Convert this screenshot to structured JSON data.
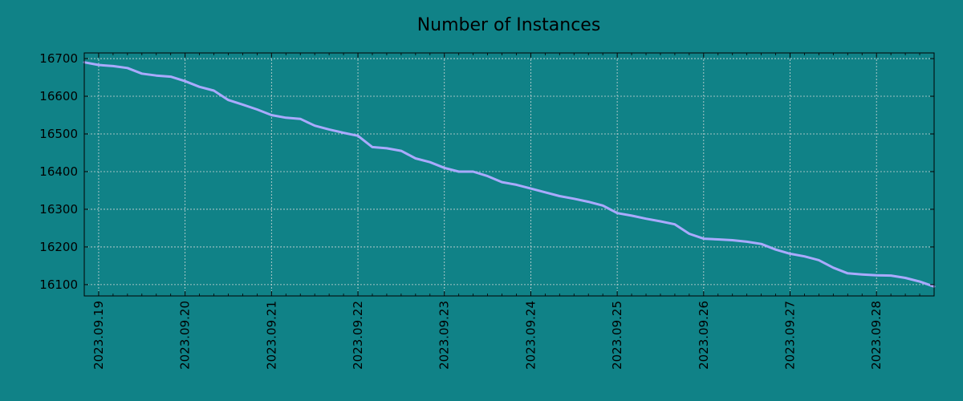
{
  "chart_data": {
    "type": "line",
    "title": "Number of Instances",
    "xlabel": "",
    "ylabel": "",
    "grid": true,
    "x_ticks": [
      "2023.09.19",
      "2023.09.20",
      "2023.09.21",
      "2023.09.22",
      "2023.09.23",
      "2023.09.24",
      "2023.09.25",
      "2023.09.26",
      "2023.09.27",
      "2023.09.28"
    ],
    "y_ticks": [
      16100,
      16200,
      16300,
      16400,
      16500,
      16600,
      16700
    ],
    "xlim": [
      "2023-09-18 20:00",
      "2023-09-28 16:00"
    ],
    "ylim": [
      16070,
      16715
    ],
    "series": [
      {
        "color": "#aaaaff",
        "x": [
          "2023-09-18 20:00",
          "2023-09-19 00:00",
          "2023-09-19 04:00",
          "2023-09-19 08:00",
          "2023-09-19 12:00",
          "2023-09-19 16:00",
          "2023-09-19 20:00",
          "2023-09-20 00:00",
          "2023-09-20 04:00",
          "2023-09-20 08:00",
          "2023-09-20 12:00",
          "2023-09-20 16:00",
          "2023-09-20 20:00",
          "2023-09-21 00:00",
          "2023-09-21 04:00",
          "2023-09-21 08:00",
          "2023-09-21 12:00",
          "2023-09-21 16:00",
          "2023-09-21 20:00",
          "2023-09-22 00:00",
          "2023-09-22 04:00",
          "2023-09-22 08:00",
          "2023-09-22 12:00",
          "2023-09-22 16:00",
          "2023-09-22 20:00",
          "2023-09-23 00:00",
          "2023-09-23 04:00",
          "2023-09-23 08:00",
          "2023-09-23 12:00",
          "2023-09-23 16:00",
          "2023-09-23 20:00",
          "2023-09-24 00:00",
          "2023-09-24 04:00",
          "2023-09-24 08:00",
          "2023-09-24 12:00",
          "2023-09-24 16:00",
          "2023-09-24 20:00",
          "2023-09-25 00:00",
          "2023-09-25 04:00",
          "2023-09-25 08:00",
          "2023-09-25 12:00",
          "2023-09-25 16:00",
          "2023-09-25 20:00",
          "2023-09-26 00:00",
          "2023-09-26 04:00",
          "2023-09-26 08:00",
          "2023-09-26 12:00",
          "2023-09-26 16:00",
          "2023-09-26 20:00",
          "2023-09-27 00:00",
          "2023-09-27 04:00",
          "2023-09-27 08:00",
          "2023-09-27 12:00",
          "2023-09-27 16:00",
          "2023-09-27 20:00",
          "2023-09-28 00:00",
          "2023-09-28 04:00",
          "2023-09-28 08:00",
          "2023-09-28 12:00",
          "2023-09-28 16:00"
        ],
        "values": [
          16690,
          16683,
          16680,
          16675,
          16660,
          16655,
          16652,
          16640,
          16625,
          16615,
          16590,
          16578,
          16565,
          16550,
          16543,
          16540,
          16522,
          16512,
          16503,
          16495,
          16465,
          16462,
          16455,
          16435,
          16425,
          16410,
          16400,
          16400,
          16388,
          16372,
          16365,
          16355,
          16345,
          16335,
          16328,
          16320,
          16310,
          16290,
          16283,
          16275,
          16268,
          16260,
          16235,
          16222,
          16220,
          16218,
          16214,
          16208,
          16193,
          16182,
          16175,
          16165,
          16145,
          16130,
          16127,
          16125,
          16124,
          16118,
          16108,
          16095
        ]
      }
    ]
  }
}
